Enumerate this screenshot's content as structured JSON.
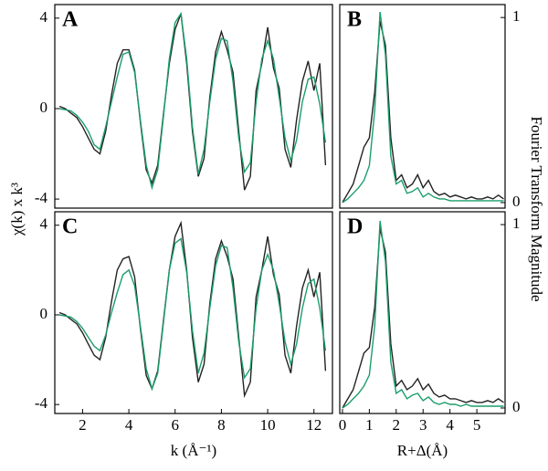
{
  "chart_data": [
    {
      "type": "line",
      "label": "A",
      "ylabel": "χ(k) x k³",
      "x": [
        1.0,
        1.25,
        1.5,
        1.75,
        2.0,
        2.25,
        2.5,
        2.75,
        3.0,
        3.25,
        3.5,
        3.75,
        4.0,
        4.25,
        4.5,
        4.75,
        5.0,
        5.25,
        5.5,
        5.75,
        6.0,
        6.25,
        6.5,
        6.75,
        7.0,
        7.25,
        7.5,
        7.75,
        8.0,
        8.25,
        8.5,
        8.75,
        9.0,
        9.25,
        9.5,
        9.75,
        10.0,
        10.25,
        10.5,
        10.75,
        11.0,
        11.25,
        11.5,
        11.75,
        12.0,
        12.25,
        12.5
      ],
      "series": [
        {
          "color": "#222222",
          "values": [
            0.1,
            0.0,
            -0.2,
            -0.4,
            -0.8,
            -1.3,
            -1.8,
            -2.0,
            -1.0,
            0.6,
            2.0,
            2.6,
            2.6,
            1.7,
            -0.6,
            -2.7,
            -3.3,
            -2.5,
            -0.2,
            2.0,
            3.5,
            4.2,
            2.0,
            -1.0,
            -3.0,
            -2.2,
            0.5,
            2.5,
            3.4,
            2.6,
            1.6,
            -1.0,
            -3.6,
            -3.0,
            0.8,
            2.0,
            3.6,
            1.8,
            0.9,
            -1.8,
            -2.6,
            -0.5,
            1.2,
            2.1,
            0.8,
            2.0,
            -2.5
          ]
        },
        {
          "color": "#1a9e6a",
          "values": [
            0.0,
            -0.05,
            -0.1,
            -0.3,
            -0.6,
            -1.0,
            -1.6,
            -1.8,
            -0.8,
            0.3,
            1.4,
            2.4,
            2.5,
            1.6,
            -0.5,
            -2.5,
            -3.5,
            -2.7,
            -0.3,
            2.2,
            3.8,
            4.2,
            2.2,
            -0.8,
            -2.9,
            -1.8,
            0.3,
            2.2,
            3.1,
            3.0,
            1.2,
            -1.3,
            -2.8,
            -2.4,
            0.3,
            2.2,
            3.0,
            2.2,
            0.5,
            -1.3,
            -2.3,
            -1.4,
            0.3,
            1.3,
            1.4,
            0.2,
            -1.5
          ]
        }
      ],
      "xlim": [
        0.8,
        12.8
      ],
      "ylim": [
        -4.4,
        4.6
      ],
      "yticks": [
        -4,
        0,
        4
      ]
    },
    {
      "type": "line",
      "label": "B",
      "ylabel": "Fourier Transform Magnitude",
      "x": [
        0.0,
        0.2,
        0.4,
        0.6,
        0.8,
        1.0,
        1.2,
        1.4,
        1.6,
        1.8,
        2.0,
        2.2,
        2.4,
        2.6,
        2.8,
        3.0,
        3.2,
        3.4,
        3.6,
        3.8,
        4.0,
        4.2,
        4.4,
        4.6,
        4.8,
        5.0,
        5.2,
        5.4,
        5.6,
        5.8,
        6.0
      ],
      "series": [
        {
          "color": "#222222",
          "values": [
            0.0,
            0.05,
            0.1,
            0.2,
            0.3,
            0.35,
            0.6,
            0.98,
            0.85,
            0.35,
            0.12,
            0.15,
            0.08,
            0.1,
            0.15,
            0.08,
            0.12,
            0.06,
            0.04,
            0.05,
            0.03,
            0.04,
            0.03,
            0.02,
            0.03,
            0.02,
            0.02,
            0.03,
            0.02,
            0.04,
            0.02
          ]
        },
        {
          "color": "#1a9e6a",
          "values": [
            0.0,
            0.02,
            0.05,
            0.08,
            0.12,
            0.2,
            0.5,
            1.03,
            0.8,
            0.25,
            0.1,
            0.12,
            0.05,
            0.06,
            0.08,
            0.03,
            0.05,
            0.03,
            0.02,
            0.02,
            0.01,
            0.01,
            0.01,
            0.01,
            0.01,
            0.01,
            0.01,
            0.01,
            0.01,
            0.01,
            0.01
          ]
        }
      ],
      "xlim": [
        -0.1,
        6.05
      ],
      "ylim": [
        -0.03,
        1.07
      ],
      "yticks": [
        0,
        1
      ]
    },
    {
      "type": "line",
      "label": "C",
      "xlabel": "k (Å⁻¹)",
      "x": [
        1.0,
        1.25,
        1.5,
        1.75,
        2.0,
        2.25,
        2.5,
        2.75,
        3.0,
        3.25,
        3.5,
        3.75,
        4.0,
        4.25,
        4.5,
        4.75,
        5.0,
        5.25,
        5.5,
        5.75,
        6.0,
        6.25,
        6.5,
        6.75,
        7.0,
        7.25,
        7.5,
        7.75,
        8.0,
        8.25,
        8.5,
        8.75,
        9.0,
        9.25,
        9.5,
        9.75,
        10.0,
        10.25,
        10.5,
        10.75,
        11.0,
        11.25,
        11.5,
        11.75,
        12.0,
        12.25,
        12.5
      ],
      "series": [
        {
          "color": "#222222",
          "values": [
            0.1,
            0.0,
            -0.2,
            -0.4,
            -0.8,
            -1.3,
            -1.8,
            -2.0,
            -1.0,
            0.6,
            2.0,
            2.5,
            2.6,
            1.7,
            -0.6,
            -2.7,
            -3.3,
            -2.5,
            -0.2,
            2.0,
            3.5,
            4.1,
            2.0,
            -1.0,
            -3.0,
            -2.2,
            0.5,
            2.5,
            3.3,
            2.6,
            1.6,
            -1.0,
            -3.6,
            -3.0,
            0.8,
            2.0,
            3.5,
            1.8,
            0.9,
            -1.8,
            -2.6,
            -0.5,
            1.2,
            2.0,
            0.8,
            1.9,
            -2.5
          ]
        },
        {
          "color": "#1a9e6a",
          "values": [
            0.0,
            -0.05,
            -0.1,
            -0.3,
            -0.6,
            -1.0,
            -1.4,
            -1.6,
            -0.9,
            0.1,
            1.0,
            1.8,
            2.0,
            1.3,
            -0.5,
            -2.4,
            -3.3,
            -2.6,
            -0.3,
            2.0,
            3.2,
            3.4,
            1.9,
            -0.7,
            -2.6,
            -1.7,
            0.3,
            2.2,
            3.1,
            3.0,
            1.2,
            -1.2,
            -2.8,
            -2.4,
            0.3,
            2.0,
            2.7,
            2.0,
            0.5,
            -1.2,
            -2.2,
            -1.3,
            0.3,
            1.4,
            1.6,
            0.3,
            -1.6
          ]
        }
      ],
      "xlim": [
        0.8,
        12.8
      ],
      "xticks": [
        2,
        4,
        6,
        8,
        10,
        12
      ],
      "ylim": [
        -4.4,
        4.6
      ],
      "yticks": [
        -4,
        0,
        4
      ]
    },
    {
      "type": "line",
      "label": "D",
      "xlabel": "R+Δ(Å)",
      "x": [
        0.0,
        0.2,
        0.4,
        0.6,
        0.8,
        1.0,
        1.2,
        1.4,
        1.6,
        1.8,
        2.0,
        2.2,
        2.4,
        2.6,
        2.8,
        3.0,
        3.2,
        3.4,
        3.6,
        3.8,
        4.0,
        4.2,
        4.4,
        4.6,
        4.8,
        5.0,
        5.2,
        5.4,
        5.6,
        5.8,
        6.0
      ],
      "series": [
        {
          "color": "#222222",
          "values": [
            0.0,
            0.05,
            0.1,
            0.2,
            0.3,
            0.33,
            0.55,
            0.98,
            0.85,
            0.35,
            0.12,
            0.15,
            0.1,
            0.12,
            0.16,
            0.1,
            0.13,
            0.08,
            0.06,
            0.07,
            0.05,
            0.05,
            0.04,
            0.03,
            0.04,
            0.03,
            0.03,
            0.04,
            0.03,
            0.05,
            0.03
          ]
        },
        {
          "color": "#1a9e6a",
          "values": [
            0.0,
            0.02,
            0.05,
            0.08,
            0.12,
            0.18,
            0.45,
            1.02,
            0.8,
            0.25,
            0.08,
            0.1,
            0.05,
            0.07,
            0.08,
            0.04,
            0.06,
            0.03,
            0.02,
            0.03,
            0.02,
            0.02,
            0.01,
            0.02,
            0.01,
            0.01,
            0.01,
            0.01,
            0.01,
            0.01,
            0.01
          ]
        }
      ],
      "xlim": [
        -0.1,
        6.05
      ],
      "xticks": [
        0,
        1,
        2,
        3,
        4,
        5
      ],
      "ylim": [
        -0.03,
        1.07
      ],
      "yticks": [
        0,
        1
      ]
    }
  ]
}
